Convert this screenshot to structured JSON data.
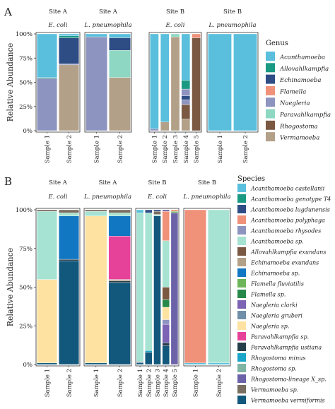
{
  "colors": {
    "panelA": {
      "Acanthamoeba": "#59bfdc",
      "Allovahlkampfia": "#1a9a82",
      "Echinamoeba": "#2f4d85",
      "Flamella": "#f0917a",
      "Naegleria": "#8e94c0",
      "Paravahlkampfia": "#8ed8c3",
      "Rhogostoma": "#7a5842",
      "Vermamoeba": "#b3a089"
    },
    "panelB": {
      "Acanthamoeba castellanii": "#59bfdc",
      "Acanthamoeba genotype T4": "#1a9a82",
      "Acanthamoeba lugdunensis": "#2f4d85",
      "Acanthamoeba polyphaga": "#f0917a",
      "Acanthamoeba rhysodes": "#8e94c0",
      "Acanthamoeba sp.": "#a6e3d2",
      "Allovahlkampfia exundans": "#7a5842",
      "Echinamoeba exundans": "#b3a089",
      "Echinamoeba sp.": "#1277c2",
      "Flamella fluviatilis": "#6db55a",
      "Flamella sp.": "#26894a",
      "Naegleria clarki": "#7c63b4",
      "Naegleria gruberi": "#6f8fa8",
      "Naegleria sp.": "#fde2a2",
      "Paravahlkampfia sp.": "#e7429a",
      "Paravahlkampfia ustiana": "#263e4a",
      "Rhogostoma minus": "#1aa5c9",
      "Rhogostoma sp.": "#7fb3a3",
      "Rhogostoma-lineage X_sp.": "#6c62a8",
      "Vermamoeba sp.": "#7a6e60",
      "Vermamoeba vermiformis": "#12587c"
    }
  },
  "chart_data": [
    {
      "type": "bar",
      "stacked": true,
      "panel_label": "A",
      "ylabel": "Relative Abundance",
      "yticks": [
        "0%",
        "25%",
        "50%",
        "75%",
        "100%"
      ],
      "ylim": [
        0,
        100
      ],
      "legend_title": "Genus",
      "legend_position": "right",
      "legend": [
        "Acanthamoeba",
        "Allovahlkampfia",
        "Echinamoeba",
        "Flamella",
        "Naegleria",
        "Paravahlkampfia",
        "Rhogostoma",
        "Vermamoeba"
      ],
      "facets": [
        {
          "site": "Site A",
          "organism": "E. coli",
          "bars": [
            {
              "label": "Sample 1",
              "segments": [
                [
                  "Naegleria",
                  54
                ],
                [
                  "Allovahlkampfia",
                  1
                ],
                [
                  "Acanthamoeba",
                  45
                ]
              ]
            },
            {
              "label": "Sample 2",
              "segments": [
                [
                  "Vermamoeba",
                  68
                ],
                [
                  "Naegleria",
                  1
                ],
                [
                  "Echinamoeba",
                  27
                ],
                [
                  "Allovahlkampfia",
                  2
                ],
                [
                  "Acanthamoeba",
                  2
                ]
              ]
            }
          ]
        },
        {
          "site": "Site A",
          "organism": "L. pneumophila",
          "bars": [
            {
              "label": "Sample 1",
              "segments": [
                [
                  "Naegleria",
                  97
                ],
                [
                  "Acanthamoeba",
                  3
                ]
              ]
            },
            {
              "label": "Sample 2",
              "segments": [
                [
                  "Vermamoeba",
                  55
                ],
                [
                  "Paravahlkampfia",
                  28
                ],
                [
                  "Echinamoeba",
                  13
                ],
                [
                  "Acanthamoeba",
                  4
                ]
              ]
            }
          ]
        },
        {
          "site": "Site B",
          "organism": "E. coli",
          "bars": [
            {
              "label": "Sample 1",
              "segments": [
                [
                  "Naegleria",
                  2
                ],
                [
                  "Acanthamoeba",
                  98
                ]
              ]
            },
            {
              "label": "Sample 2",
              "segments": [
                [
                  "Vermamoeba",
                  9
                ],
                [
                  "Acanthamoeba",
                  91
                ]
              ]
            },
            {
              "label": "Sample 3",
              "segments": [
                [
                  "Vermamoeba",
                  97
                ],
                [
                  "Paravahlkampfia",
                  3
                ]
              ]
            },
            {
              "label": "Sample 4",
              "segments": [
                [
                  "Vermamoeba",
                  12
                ],
                [
                  "Rhogostoma",
                  15
                ],
                [
                  "Naegleria",
                  5
                ],
                [
                  "Echinamoeba",
                  4
                ],
                [
                  "Naegleria",
                  7
                ],
                [
                  "Allovahlkampfia",
                  9
                ],
                [
                  "Acanthamoeba",
                  48
                ]
              ]
            },
            {
              "label": "Sample 5",
              "segments": [
                [
                  "Rhogostoma",
                  96
                ],
                [
                  "Flamella",
                  4
                ]
              ]
            }
          ]
        },
        {
          "site": "Site B",
          "organism": "L. pneumophila",
          "bars": [
            {
              "label": "Sample 1",
              "segments": [
                [
                  "Acanthamoeba",
                  100
                ]
              ]
            },
            {
              "label": "Sample 2",
              "segments": [
                [
                  "Acanthamoeba",
                  100
                ]
              ]
            }
          ]
        }
      ]
    },
    {
      "type": "bar",
      "stacked": true,
      "panel_label": "B",
      "ylabel": "Relative Abundance",
      "yticks": [
        "0%",
        "25%",
        "50%",
        "75%",
        "100%"
      ],
      "ylim": [
        0,
        100
      ],
      "legend_title": "Species",
      "legend_position": "right",
      "legend": [
        "Acanthamoeba castellanii",
        "Acanthamoeba genotype T4",
        "Acanthamoeba lugdunensis",
        "Acanthamoeba polyphaga",
        "Acanthamoeba rhysodes",
        "Acanthamoeba sp.",
        "Allovahlkampfia exundans",
        "Echinamoeba exundans",
        "Echinamoeba sp.",
        "Flamella fluviatilis",
        "Flamella sp.",
        "Naegleria clarki",
        "Naegleria gruberi",
        "Naegleria sp.",
        "Paravahlkampfia sp.",
        "Paravahlkampfia ustiana",
        "Rhogostoma minus",
        "Rhogostoma sp.",
        "Rhogostoma-lineage X_sp.",
        "Vermamoeba sp.",
        "Vermamoeba vermiformis"
      ],
      "facets": [
        {
          "site": "Site A",
          "organism": "E. coli",
          "bars": [
            {
              "label": "Sample 1",
              "segments": [
                [
                  "Vermamoeba vermiformis",
                  1
                ],
                [
                  "Naegleria sp.",
                  54
                ],
                [
                  "Acanthamoeba sp.",
                  44
                ],
                [
                  "Vermamoeba sp.",
                  1
                ]
              ]
            },
            {
              "label": "Sample 2",
              "segments": [
                [
                  "Vermamoeba vermiformis",
                  67
                ],
                [
                  "Paravahlkampfia ustiana",
                  1
                ],
                [
                  "Echinamoeba sp.",
                  28
                ],
                [
                  "Acanthamoeba sp.",
                  2
                ],
                [
                  "Vermamoeba sp.",
                  2
                ]
              ]
            }
          ]
        },
        {
          "site": "Site A",
          "organism": "L. pneumophila",
          "bars": [
            {
              "label": "Sample 1",
              "segments": [
                [
                  "Vermamoeba vermiformis",
                  1
                ],
                [
                  "Naegleria sp.",
                  95
                ],
                [
                  "Acanthamoeba sp.",
                  3
                ],
                [
                  "Vermamoeba sp.",
                  1
                ]
              ]
            },
            {
              "label": "Sample 2",
              "segments": [
                [
                  "Vermamoeba vermiformis",
                  53
                ],
                [
                  "Paravahlkampfia ustiana",
                  1
                ],
                [
                  "Echinamoeba exundans",
                  1
                ],
                [
                  "Paravahlkampfia sp.",
                  28
                ],
                [
                  "Echinamoeba sp.",
                  13
                ],
                [
                  "Acanthamoeba sp.",
                  2
                ],
                [
                  "Vermamoeba sp.",
                  2
                ]
              ]
            }
          ]
        },
        {
          "site": "Site B",
          "organism": "E. coli",
          "bars": [
            {
              "label": "Sample 1",
              "segments": [
                [
                  "Vermamoeba vermiformis",
                  1
                ],
                [
                  "Naegleria gruberi",
                  1
                ],
                [
                  "Acanthamoeba sp.",
                  96
                ],
                [
                  "Acanthamoeba castellanii",
                  2
                ]
              ]
            },
            {
              "label": "Sample 2",
              "segments": [
                [
                  "Vermamoeba vermiformis",
                  8
                ],
                [
                  "Rhogostoma minus",
                  1
                ],
                [
                  "Acanthamoeba sp.",
                  89
                ],
                [
                  "Acanthamoeba lugdunensis",
                  2
                ]
              ]
            },
            {
              "label": "Sample 3",
              "segments": [
                [
                  "Vermamoeba vermiformis",
                  96
                ],
                [
                  "Acanthamoeba sp.",
                  1
                ],
                [
                  "Vermamoeba sp.",
                  2
                ],
                [
                  "Acanthamoeba lugdunensis",
                  1
                ]
              ]
            },
            {
              "label": "Sample 4",
              "segments": [
                [
                  "Vermamoeba vermiformis",
                  12
                ],
                [
                  "Paravahlkampfia ustiana",
                  2
                ],
                [
                  "Naegleria clarki",
                  12
                ],
                [
                  "Acanthamoeba rhysodes",
                  3
                ],
                [
                  "Naegleria sp.",
                  8
                ],
                [
                  "Flamella sp.",
                  5
                ],
                [
                  "Allovahlkampfia exundans",
                  8
                ],
                [
                  "Acanthamoeba sp.",
                  30
                ],
                [
                  "Acanthamoeba polyphaga",
                  19
                ],
                [
                  "Rhogostoma-lineage X_sp.",
                  1
                ]
              ]
            },
            {
              "label": "Sample 5",
              "segments": [
                [
                  "Rhogostoma-lineage X_sp.",
                  98
                ],
                [
                  "Flamella fluviatilis",
                  1
                ],
                [
                  "Acanthamoeba polyphaga",
                  1
                ]
              ]
            }
          ]
        },
        {
          "site": "Site B",
          "organism": "L. pneumophila",
          "bars": [
            {
              "label": "Sample 1",
              "segments": [
                [
                  "Acanthamoeba castellanii",
                  1
                ],
                [
                  "Acanthamoeba polyphaga",
                  99
                ]
              ]
            },
            {
              "label": "Sample 2",
              "segments": [
                [
                  "Acanthamoeba castellanii",
                  1
                ],
                [
                  "Acanthamoeba sp.",
                  99
                ]
              ]
            }
          ]
        }
      ]
    }
  ]
}
